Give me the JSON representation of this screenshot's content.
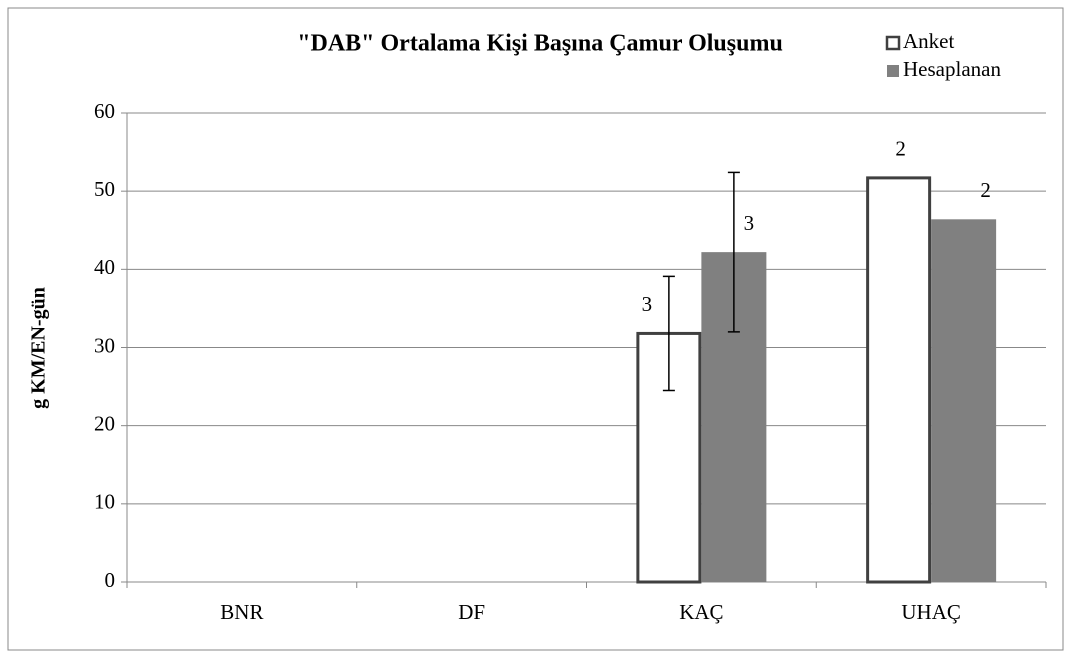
{
  "chart_data": {
    "type": "bar",
    "title": "\"DAB\" Ortalama Kişi Başına Çamur Oluşumu",
    "y_label": "g KM/EN-gün",
    "categories": [
      "BNR",
      "DF",
      "KAÇ",
      "UHAÇ"
    ],
    "series": [
      {
        "name": "Anket",
        "color": "#ffffff",
        "edge": "#404040",
        "values": [
          null,
          null,
          31.8,
          51.7
        ],
        "errors": [
          null,
          null,
          7.3,
          null
        ],
        "labels": [
          null,
          null,
          "3",
          "2"
        ]
      },
      {
        "name": "Hesaplanan",
        "color": "#808080",
        "edge": "#808080",
        "values": [
          null,
          null,
          42.2,
          46.4
        ],
        "errors": [
          null,
          null,
          10.2,
          null
        ],
        "labels": [
          null,
          null,
          "3",
          "2"
        ]
      }
    ],
    "ylim": [
      0,
      60
    ],
    "yticks": [
      0,
      10,
      20,
      30,
      40,
      50,
      60
    ],
    "grid": true,
    "legend": "top-right"
  }
}
